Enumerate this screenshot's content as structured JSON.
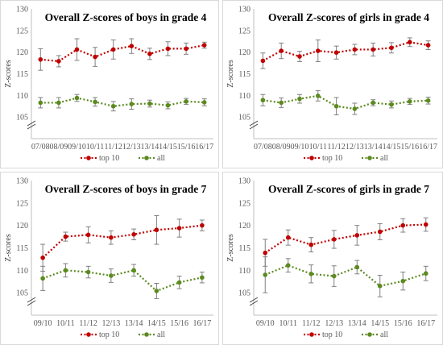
{
  "colors": {
    "top10": "#c00000",
    "all": "#5b8a1f",
    "error": "#808080",
    "axis": "#bfbfbf"
  },
  "chart_data": [
    {
      "type": "line",
      "title": "Overall Z-scores of boys in grade 4",
      "ylabel": "Z-scores",
      "ylim": [
        100,
        130
      ],
      "yticks": [
        105,
        110,
        115,
        120,
        125,
        130
      ],
      "axis_break": true,
      "categories": [
        "07/08",
        "08/09",
        "09/10",
        "10/11",
        "11/12",
        "12/13",
        "13/14",
        "14/15",
        "15/16",
        "16/17"
      ],
      "series": [
        {
          "name": "top 10",
          "values": [
            118.3,
            117.9,
            120.6,
            118.9,
            120.6,
            121.4,
            119.6,
            120.8,
            120.8,
            121.6
          ],
          "errors": [
            2.5,
            1.3,
            2.5,
            2.2,
            2.2,
            1.7,
            1.3,
            1.6,
            1.3,
            0.7
          ]
        },
        {
          "name": "all",
          "values": [
            108.3,
            108.3,
            109.4,
            108.5,
            107.5,
            108.0,
            108.1,
            107.7,
            108.6,
            108.4
          ],
          "errors": [
            1.2,
            1.2,
            0.8,
            1.0,
            1.1,
            1.2,
            0.8,
            0.8,
            0.7,
            0.8
          ]
        }
      ],
      "legend": "bottom"
    },
    {
      "type": "line",
      "title": "Overall Z-scores of girls in grade 4",
      "ylabel": "Z-scores",
      "ylim": [
        100,
        130
      ],
      "yticks": [
        105,
        110,
        115,
        120,
        125,
        130
      ],
      "axis_break": true,
      "categories": [
        "07/08",
        "08/09",
        "09/10",
        "10/11",
        "11/12",
        "12/13",
        "13/14",
        "14/15",
        "15/16",
        "16/17"
      ],
      "series": [
        {
          "name": "top 10",
          "values": [
            118.0,
            120.3,
            119.0,
            120.3,
            119.9,
            120.6,
            120.6,
            121.0,
            122.3,
            121.6
          ],
          "errors": [
            1.8,
            1.8,
            1.2,
            2.5,
            1.5,
            1.2,
            1.5,
            1.2,
            1.0,
            1.0
          ]
        },
        {
          "name": "all",
          "values": [
            108.9,
            108.3,
            109.2,
            109.9,
            107.5,
            106.9,
            108.3,
            107.9,
            108.6,
            108.8
          ],
          "errors": [
            1.3,
            1.1,
            1.0,
            1.2,
            2.0,
            1.3,
            0.7,
            0.8,
            0.7,
            0.8
          ]
        }
      ],
      "legend": "bottom"
    },
    {
      "type": "line",
      "title": "Overall Z-scores of boys in grade 7",
      "ylabel": "Z-scores",
      "ylim": [
        100,
        130
      ],
      "yticks": [
        105,
        110,
        115,
        120,
        125,
        130
      ],
      "axis_break": true,
      "categories": [
        "09/10",
        "10/11",
        "11/12",
        "12/13",
        "13/14",
        "14/15",
        "15/16",
        "16/17"
      ],
      "series": [
        {
          "name": "top 10",
          "values": [
            112.8,
            117.5,
            117.9,
            117.3,
            118.0,
            119.0,
            119.4,
            120.0
          ],
          "errors": [
            3.0,
            1.0,
            1.8,
            1.5,
            1.2,
            3.2,
            2.0,
            1.2
          ]
        },
        {
          "name": "all",
          "values": [
            108.2,
            110.0,
            109.6,
            108.8,
            110.0,
            105.4,
            107.3,
            108.4
          ],
          "errors": [
            2.7,
            1.5,
            1.3,
            1.5,
            1.3,
            1.7,
            1.4,
            1.2
          ]
        }
      ],
      "legend": "bottom"
    },
    {
      "type": "line",
      "title": "Overall Z-scores of girls in grade 7",
      "ylabel": "Z-scores",
      "ylim": [
        100,
        130
      ],
      "yticks": [
        105,
        110,
        115,
        120,
        125,
        130
      ],
      "axis_break": true,
      "categories": [
        "09/10",
        "10/11",
        "11/12",
        "12/13",
        "13/14",
        "14/15",
        "15/16",
        "16/17"
      ],
      "series": [
        {
          "name": "top 10",
          "values": [
            113.9,
            117.3,
            115.7,
            116.9,
            117.8,
            118.6,
            120.0,
            120.2
          ],
          "errors": [
            3.0,
            1.7,
            1.6,
            2.0,
            2.2,
            1.8,
            1.5,
            1.5
          ]
        },
        {
          "name": "all",
          "values": [
            109.0,
            111.1,
            109.2,
            108.7,
            110.7,
            106.5,
            107.6,
            109.3
          ],
          "errors": [
            4.0,
            1.5,
            2.0,
            2.3,
            1.5,
            2.4,
            2.0,
            1.6
          ]
        }
      ],
      "legend": "bottom"
    }
  ]
}
